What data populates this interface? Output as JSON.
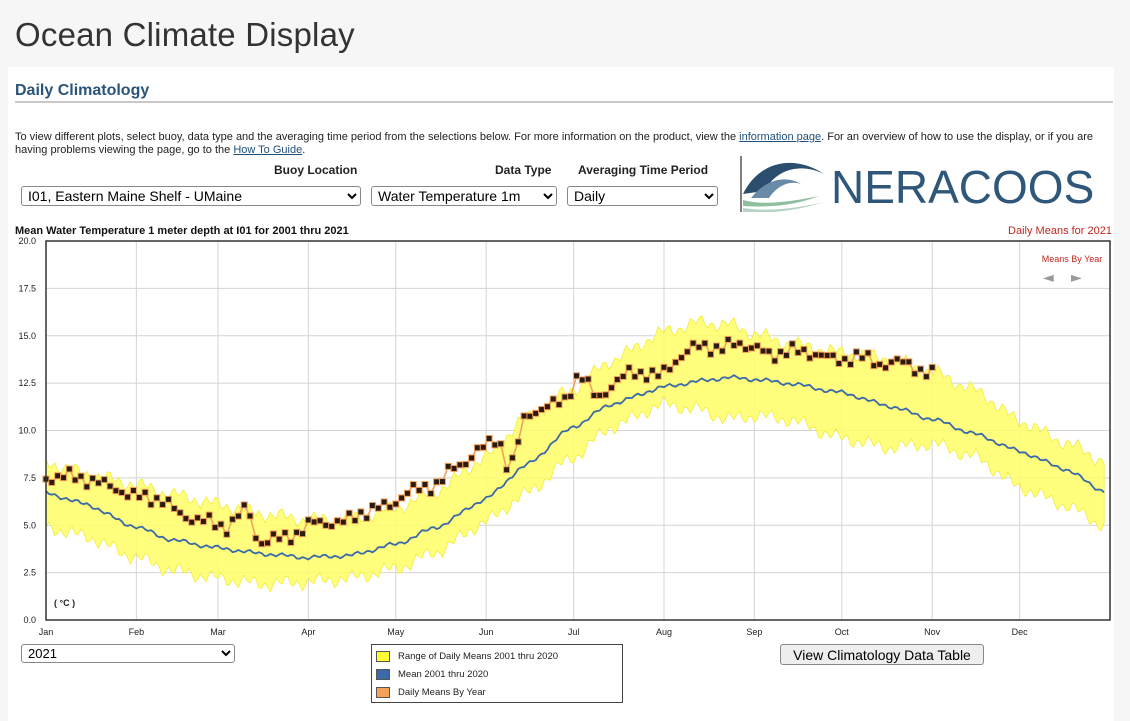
{
  "page": {
    "title": "Ocean Climate Display"
  },
  "section": {
    "title": "Daily Climatology"
  },
  "intro": {
    "text1": "To view different plots, select buoy, data type and the averaging time period from the selections below. For more information on the product, view the ",
    "link1": "information page",
    "text2": ". For an overview of how to use the display, or if you are having problems viewing the page, go to the ",
    "link2": "How To Guide",
    "text3": "."
  },
  "controls": {
    "buoy_label": "Buoy Location",
    "buoy_value": "I01, Eastern Maine Shelf - UMaine",
    "datatype_label": "Data Type",
    "datatype_value": "Water Temperature 1m",
    "period_label": "Averaging Time Period",
    "period_value": "Daily",
    "year_value": "2021"
  },
  "logo": {
    "text": "NERACOOS"
  },
  "chart": {
    "title": "Mean Water Temperature 1 meter depth at I01 for 2001 thru 2021",
    "right_title": "Daily Means for 2021",
    "means_by_year_label": "Means By Year",
    "unit_label": "( °C )",
    "prev_arrow": "◄",
    "next_arrow": "►"
  },
  "legend": {
    "items": [
      {
        "label": "Range of Daily Means 2001 thru 2020",
        "color": "#ffff33"
      },
      {
        "label": "Mean 2001 thru 2020",
        "color": "#3b6aa8"
      },
      {
        "label": "Daily Means By Year",
        "color": "#f4a15a"
      }
    ]
  },
  "button": {
    "label": "View Climatology Data Table"
  },
  "chart_data": {
    "type": "line",
    "title": "Mean Water Temperature 1 meter depth at I01 for 2001 thru 2021",
    "ylabel": "( °C )",
    "ylim": [
      0,
      20
    ],
    "yticks": [
      "0.0",
      "2.5",
      "5.0",
      "7.5",
      "10.0",
      "12.5",
      "15.0",
      "17.5",
      "20.0"
    ],
    "xlim": [
      1,
      366
    ],
    "month_ticks": [
      {
        "label": "Jan",
        "day": 1
      },
      {
        "label": "Feb",
        "day": 32
      },
      {
        "label": "Mar",
        "day": 60
      },
      {
        "label": "Apr",
        "day": 91
      },
      {
        "label": "May",
        "day": 121
      },
      {
        "label": "Jun",
        "day": 152
      },
      {
        "label": "Jul",
        "day": 182
      },
      {
        "label": "Aug",
        "day": 213
      },
      {
        "label": "Sep",
        "day": 244
      },
      {
        "label": "Oct",
        "day": 274
      },
      {
        "label": "Nov",
        "day": 305
      },
      {
        "label": "Dec",
        "day": 335
      }
    ],
    "grid": true,
    "series": [
      {
        "name": "Range of Daily Means 2001 thru 2020",
        "kind": "band",
        "color": "#ffff66",
        "x": [
          1,
          15,
          30,
          45,
          60,
          75,
          90,
          105,
          121,
          135,
          152,
          165,
          182,
          195,
          213,
          225,
          235,
          244,
          255,
          274,
          290,
          305,
          320,
          335,
          350,
          364
        ],
        "upper": [
          8.3,
          7.7,
          7.2,
          6.6,
          6.1,
          5.6,
          5.3,
          5.3,
          5.9,
          6.8,
          8.6,
          10.6,
          12.2,
          13.7,
          15.2,
          15.7,
          15.6,
          15.1,
          14.6,
          14.1,
          13.8,
          13.1,
          12.1,
          10.5,
          9.4,
          8.4
        ],
        "lower": [
          4.9,
          4.4,
          3.4,
          2.6,
          2.2,
          1.9,
          2.0,
          2.2,
          2.7,
          3.6,
          5.2,
          6.6,
          8.6,
          10.2,
          11.4,
          11.1,
          10.6,
          10.8,
          10.6,
          9.6,
          9.1,
          9.3,
          8.6,
          7.0,
          6.1,
          5.0
        ]
      },
      {
        "name": "Mean 2001 thru 2020",
        "kind": "line",
        "color": "#3b6aa8",
        "x": [
          1,
          15,
          30,
          45,
          60,
          75,
          90,
          105,
          121,
          135,
          152,
          165,
          182,
          195,
          213,
          225,
          235,
          244,
          255,
          274,
          290,
          305,
          320,
          335,
          350,
          364
        ],
        "values": [
          6.7,
          6.1,
          5.0,
          4.2,
          3.8,
          3.5,
          3.3,
          3.4,
          4.0,
          4.9,
          6.4,
          8.1,
          10.2,
          11.4,
          12.3,
          12.6,
          12.8,
          12.7,
          12.5,
          12.0,
          11.3,
          10.6,
          9.8,
          8.9,
          8.0,
          6.8
        ]
      },
      {
        "name": "Daily Means By Year",
        "kind": "markers",
        "year": "2021",
        "color": "#f4a15a",
        "x": [
          1,
          8,
          16,
          24,
          32,
          40,
          48,
          56,
          63,
          70,
          74,
          78,
          86,
          94,
          102,
          110,
          118,
          126,
          134,
          142,
          150,
          156,
          160,
          166,
          172,
          178,
          184,
          190,
          196,
          202,
          210,
          218,
          226,
          232,
          238,
          244,
          250,
          256,
          264,
          272,
          280,
          288,
          296,
          303,
          306
        ],
        "values": [
          7.5,
          7.6,
          7.4,
          7.0,
          6.5,
          6.4,
          5.5,
          5.2,
          4.9,
          5.9,
          4.1,
          4.2,
          4.5,
          5.2,
          5.1,
          5.7,
          6.0,
          6.8,
          7.1,
          8.1,
          9.0,
          9.6,
          7.9,
          10.9,
          11.2,
          11.5,
          12.9,
          11.8,
          12.4,
          13.2,
          12.8,
          13.8,
          14.6,
          14.2,
          14.7,
          14.3,
          14.0,
          14.2,
          14.1,
          13.7,
          13.9,
          13.5,
          13.6,
          13.0,
          12.9
        ]
      }
    ]
  }
}
